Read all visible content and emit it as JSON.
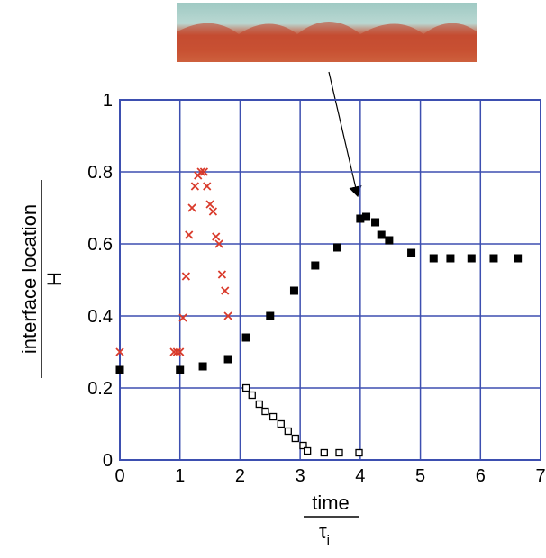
{
  "chart_data": {
    "type": "scatter",
    "xlabel": {
      "numerator": "time",
      "denominator": "τ",
      "denominator_subscript": "i"
    },
    "ylabel": {
      "numerator": "interface location",
      "denominator": "H"
    },
    "xlim": [
      0,
      7
    ],
    "ylim": [
      0,
      1
    ],
    "xticks": [
      0,
      1,
      2,
      3,
      4,
      5,
      6,
      7
    ],
    "yticks": [
      0,
      0.2,
      0.4,
      0.6,
      0.8,
      1
    ],
    "grid": true,
    "grid_color": "#3d4fb0",
    "series": [
      {
        "color": "#000000",
        "marker": "filled-square",
        "x": [
          0,
          1,
          1.38,
          1.8,
          2.1,
          2.5,
          2.9,
          3.25,
          3.62,
          4.0,
          4.1,
          4.25,
          4.35,
          4.48,
          4.85,
          5.22,
          5.5,
          5.85,
          6.22,
          6.62
        ],
        "values": [
          0.25,
          0.25,
          0.26,
          0.28,
          0.34,
          0.4,
          0.47,
          0.54,
          0.59,
          0.67,
          0.675,
          0.66,
          0.625,
          0.61,
          0.575,
          0.56,
          0.56,
          0.56,
          0.56,
          0.56
        ]
      },
      {
        "color": "#000000",
        "marker": "open-square",
        "x": [
          2.1,
          2.2,
          2.32,
          2.42,
          2.55,
          2.68,
          2.8,
          2.92,
          3.05,
          3.12,
          3.4,
          3.65,
          3.98
        ],
        "values": [
          0.2,
          0.18,
          0.155,
          0.135,
          0.12,
          0.1,
          0.08,
          0.06,
          0.04,
          0.025,
          0.02,
          0.02,
          0.02
        ]
      },
      {
        "color": "#d93a2b",
        "marker": "cross",
        "x": [
          0,
          0.9,
          0.95,
          1.0,
          1.05,
          1.1,
          1.15,
          1.2,
          1.25,
          1.3,
          1.35,
          1.4,
          1.45,
          1.5,
          1.55,
          1.6,
          1.65,
          1.7,
          1.75,
          1.8
        ],
        "values": [
          0.3,
          0.3,
          0.3,
          0.3,
          0.395,
          0.51,
          0.625,
          0.7,
          0.76,
          0.79,
          0.8,
          0.8,
          0.76,
          0.71,
          0.69,
          0.62,
          0.6,
          0.515,
          0.47,
          0.4
        ]
      }
    ]
  }
}
